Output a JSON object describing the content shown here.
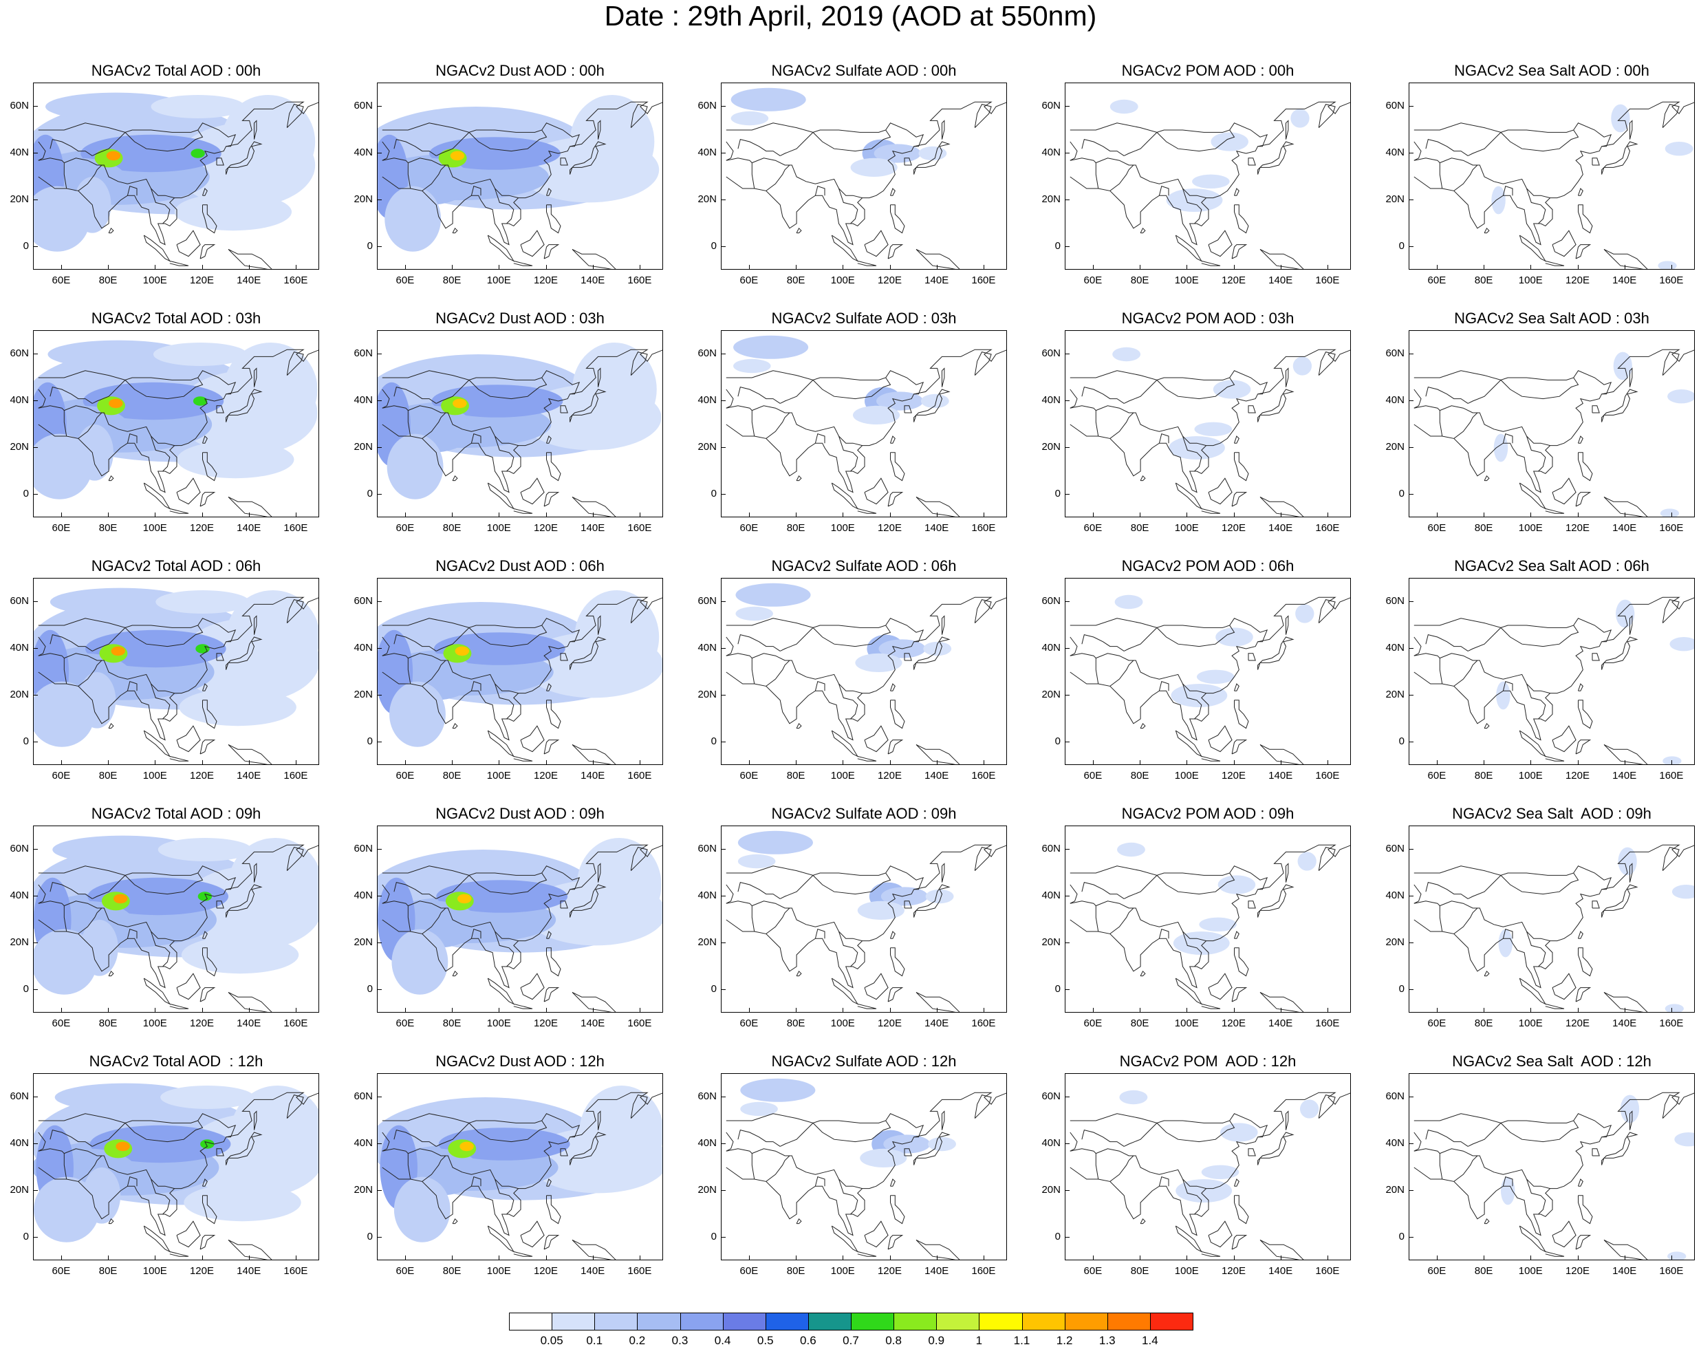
{
  "title": "Date : 29th April, 2019 (AOD at 550nm)",
  "axes": {
    "lat_ticks": [
      "60N",
      "40N",
      "20N",
      "0"
    ],
    "lon_ticks": [
      "60E",
      "80E",
      "100E",
      "120E",
      "140E",
      "160E"
    ]
  },
  "rows": [
    {
      "hour": "00h",
      "titles": [
        "NGACv2 Total AOD : 00h",
        "NGACv2 Dust AOD : 00h",
        "NGACv2 Sulfate AOD : 00h",
        "NGACv2 POM AOD : 00h",
        "NGACv2 Sea Salt AOD : 00h"
      ]
    },
    {
      "hour": "03h",
      "titles": [
        "NGACv2 Total AOD : 03h",
        "NGACv2 Dust AOD : 03h",
        "NGACv2 Sulfate AOD : 03h",
        "NGACv2 POM AOD : 03h",
        "NGACv2 Sea Salt AOD : 03h"
      ]
    },
    {
      "hour": "06h",
      "titles": [
        "NGACv2 Total AOD : 06h",
        "NGACv2 Dust AOD : 06h",
        "NGACv2 Sulfate AOD : 06h",
        "NGACv2 POM AOD : 06h",
        "NGACv2 Sea Salt AOD : 06h"
      ]
    },
    {
      "hour": "09h",
      "titles": [
        "NGACv2 Total AOD : 09h",
        "NGACv2 Dust AOD : 09h",
        "NGACv2 Sulfate AOD : 09h",
        "NGACv2 POM AOD : 09h",
        "NGACv2 Sea Salt  AOD : 09h"
      ]
    },
    {
      "hour": "12h",
      "titles": [
        "NGACv2 Total AOD  : 12h",
        "NGACv2 Dust AOD : 12h",
        "NGACv2 Sulfate AOD : 12h",
        "NGACv2 POM  AOD : 12h",
        "NGACv2 Sea Salt  AOD : 12h"
      ]
    }
  ],
  "colorbar": {
    "labels": [
      "0.05",
      "0.1",
      "0.2",
      "0.3",
      "0.4",
      "0.5",
      "0.6",
      "0.7",
      "0.8",
      "0.9",
      "1",
      "1.1",
      "1.2",
      "1.3",
      "1.4"
    ],
    "colors": [
      "#ffffff",
      "#d6e2fa",
      "#bfd0f7",
      "#a6bdf3",
      "#8aa3f0",
      "#6a7ce6",
      "#1f62e8",
      "#16958c",
      "#30d81a",
      "#8aea1e",
      "#c4f23a",
      "#fffb00",
      "#ffc400",
      "#ff9d00",
      "#ff7a00",
      "#fc2a10"
    ]
  },
  "map_extent": {
    "lon": [
      48,
      170
    ],
    "lat": [
      -10,
      70
    ]
  },
  "aerosol_layers": {
    "total": {
      "level": "high",
      "hotspot_aod": 1.3
    },
    "dust": {
      "level": "high",
      "hotspot_aod": 1.3
    },
    "sulfate": {
      "level": "low",
      "hotspot_aod": 0.4
    },
    "pom": {
      "level": "low",
      "hotspot_aod": 0.2
    },
    "seasalt": {
      "level": "low",
      "hotspot_aod": 0.2
    }
  }
}
